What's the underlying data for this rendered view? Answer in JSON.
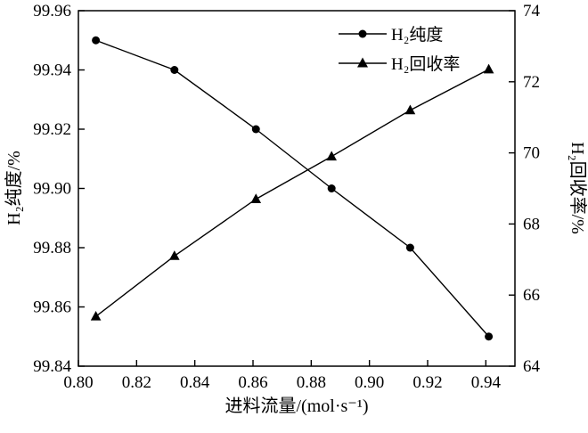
{
  "chart_data": {
    "type": "line",
    "title": "",
    "xlabel": "进料流量/(mol·s⁻¹)",
    "ylabel_left": "H₂纯度/%",
    "ylabel_right": "H₂回收率/%",
    "xlim": [
      0.8,
      0.95
    ],
    "ylim_left": [
      99.84,
      99.96
    ],
    "ylim_right": [
      64,
      74
    ],
    "grid": false,
    "legend_position": "top-right-inside",
    "colors": {
      "line": "#000000",
      "background": "#ffffff"
    },
    "xticks": [
      0.8,
      0.82,
      0.84,
      0.86,
      0.88,
      0.9,
      0.92,
      0.94
    ],
    "xtick_labels": [
      "0.80",
      "0.82",
      "0.84",
      "0.86",
      "0.88",
      "0.90",
      "0.92",
      "0.94"
    ],
    "yticks_left": [
      99.84,
      99.86,
      99.88,
      99.9,
      99.92,
      99.94,
      99.96
    ],
    "ytick_left_labels": [
      "99.84",
      "99.86",
      "99.88",
      "99.90",
      "99.92",
      "99.94",
      "99.96"
    ],
    "yticks_right": [
      64,
      66,
      68,
      70,
      72,
      74
    ],
    "ytick_right_labels": [
      "64",
      "66",
      "68",
      "70",
      "72",
      "74"
    ],
    "series": [
      {
        "name": "H₂纯度",
        "axis": "left",
        "marker": "circle",
        "x": [
          0.806,
          0.833,
          0.861,
          0.887,
          0.914,
          0.941
        ],
        "y": [
          99.95,
          99.94,
          99.92,
          99.9,
          99.88,
          99.85
        ]
      },
      {
        "name": "H₂回收率",
        "axis": "right",
        "marker": "triangle",
        "x": [
          0.806,
          0.833,
          0.861,
          0.887,
          0.914,
          0.941
        ],
        "y": [
          65.4,
          67.1,
          68.7,
          69.9,
          71.2,
          72.35
        ]
      }
    ]
  }
}
